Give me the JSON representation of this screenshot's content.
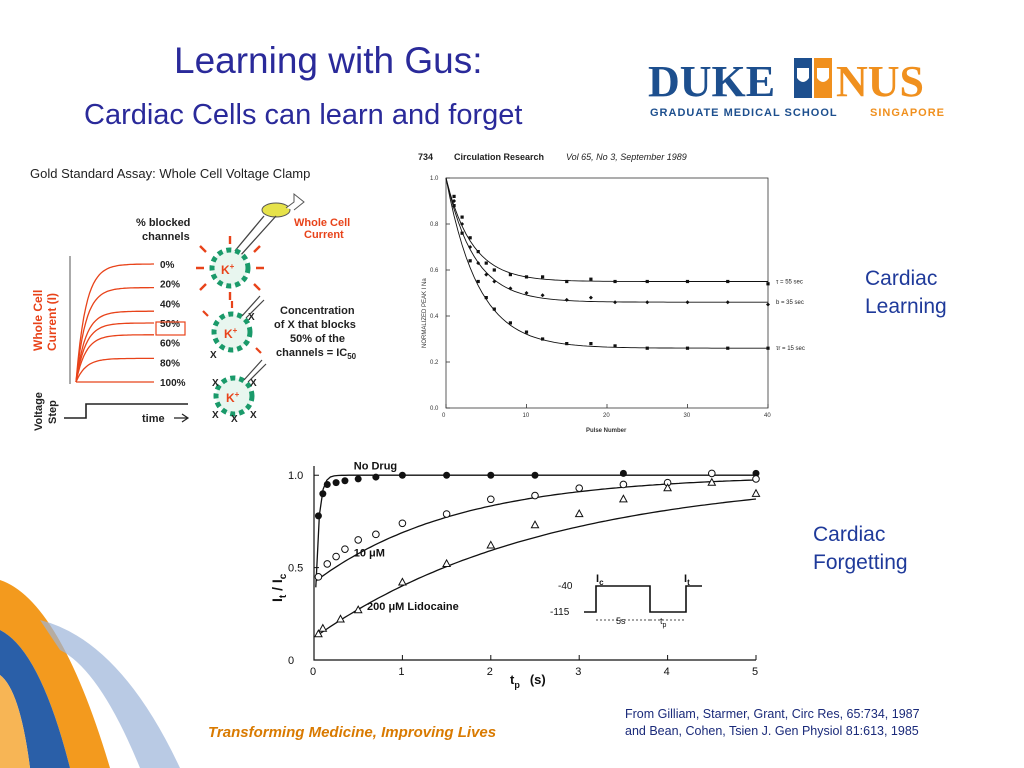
{
  "slide": {
    "title": "Learning with Gus:",
    "subtitle": "Cardiac Cells can learn and forget",
    "footer_tagline": "Transforming Medicine, Improving Lives",
    "citation_line1": "From Gilliam, Starmer, Grant, Circ Res, 65:734, 1987",
    "citation_line2": "and Bean, Cohen, Tsien  J. Gen Physiol 81:613, 1985",
    "label_learning_1": "Cardiac",
    "label_learning_2": "Learning",
    "label_forgetting_1": "Cardiac",
    "label_forgetting_2": "Forgetting"
  },
  "logo": {
    "word1": "DUKE",
    "word2": "NUS",
    "sub1": "GRADUATE MEDICAL SCHOOL",
    "sub2": "SINGAPORE",
    "colors": {
      "blue": "#1d4f8e",
      "orange": "#f0901e"
    }
  },
  "assay": {
    "title": "Gold Standard Assay:  Whole Cell Voltage Clamp",
    "blocked_header_1": "% blocked",
    "blocked_header_2": "channels",
    "percent_labels": [
      "0%",
      "20%",
      "40%",
      "50%",
      "60%",
      "80%",
      "100%"
    ],
    "ylabel_1": "Whole Cell",
    "ylabel_2": "Current (I)",
    "voltage_label_1": "Voltage",
    "voltage_label_2": "Step",
    "time_label": "time",
    "whole_cell_label_1": "Whole Cell",
    "whole_cell_label_2": "Current",
    "ic50_text_1": "Concentration",
    "ic50_text_2": "of X that blocks",
    "ic50_text_3": "50% of the",
    "ic50_text_4": "channels = IC",
    "ic50_sub": "50",
    "ion_label": "K",
    "ion_charge": "+",
    "blocker_label": "X",
    "curve_color": "#e8431a"
  },
  "chart_data": [
    {
      "type": "scatter",
      "header_page": "734",
      "header_journal": "Circulation Research",
      "header_issue": "Vol 65, No 3, September 1989",
      "xlabel": "Pulse Number",
      "ylabel": "NORMALIZED PEAK I Na",
      "xlim": [
        0,
        40
      ],
      "ylim": [
        0,
        1.0
      ],
      "x_ticks": [
        "0",
        "10",
        "20",
        "30",
        "40"
      ],
      "y_ticks": [
        "0.0",
        "0.2",
        "0.4",
        "0.6",
        "0.8",
        "1.0"
      ],
      "series": [
        {
          "name": "τ = 55 sec",
          "plateau": 0.55,
          "tau": 3.2,
          "x": [
            1,
            2,
            3,
            4,
            5,
            6,
            8,
            10,
            12,
            15,
            18,
            21,
            25,
            30,
            35,
            40
          ],
          "y": [
            0.92,
            0.83,
            0.74,
            0.68,
            0.63,
            0.6,
            0.58,
            0.57,
            0.57,
            0.55,
            0.56,
            0.55,
            0.55,
            0.55,
            0.55,
            0.54
          ]
        },
        {
          "name": "b = 35 sec",
          "plateau": 0.46,
          "tau": 3.5,
          "x": [
            1,
            2,
            3,
            4,
            5,
            6,
            8,
            10,
            12,
            15,
            18,
            21,
            25,
            30,
            35,
            40
          ],
          "y": [
            0.9,
            0.8,
            0.7,
            0.63,
            0.58,
            0.55,
            0.52,
            0.5,
            0.49,
            0.47,
            0.48,
            0.46,
            0.46,
            0.46,
            0.46,
            0.45
          ]
        },
        {
          "name": "τr = 15 sec",
          "plateau": 0.26,
          "tau": 4.0,
          "x": [
            1,
            2,
            3,
            4,
            5,
            6,
            8,
            10,
            12,
            15,
            18,
            21,
            25,
            30,
            35,
            40
          ],
          "y": [
            0.88,
            0.76,
            0.64,
            0.55,
            0.48,
            0.43,
            0.37,
            0.33,
            0.3,
            0.28,
            0.28,
            0.27,
            0.26,
            0.26,
            0.26,
            0.26
          ]
        }
      ]
    },
    {
      "type": "scatter",
      "xlabel": "t",
      "xlabel_sub": "p",
      "xlabel_unit": "(s)",
      "ylabel": "I",
      "ylabel_sub1": "t",
      "ylabel_slash": " / I",
      "ylabel_sub2": "c",
      "xlim": [
        0,
        5
      ],
      "ylim": [
        0,
        1.05
      ],
      "x_ticks": [
        "0",
        "1",
        "2",
        "3",
        "4",
        "5"
      ],
      "y_ticks": [
        "0",
        "0.5",
        "1.0"
      ],
      "series": [
        {
          "name": "No Drug",
          "marker": "filled-circle",
          "x": [
            0.05,
            0.1,
            0.15,
            0.25,
            0.35,
            0.5,
            0.7,
            1.0,
            1.5,
            2.0,
            2.5,
            3.5,
            4.5,
            5.0
          ],
          "y": [
            0.78,
            0.9,
            0.95,
            0.96,
            0.97,
            0.98,
            0.99,
            1.0,
            1.0,
            1.0,
            1.0,
            1.01,
            1.01,
            1.01
          ]
        },
        {
          "name": "10 μM",
          "marker": "open-circle",
          "x": [
            0.05,
            0.15,
            0.25,
            0.35,
            0.5,
            0.7,
            1.0,
            1.5,
            2.0,
            2.5,
            3.0,
            3.5,
            4.0,
            4.5,
            5.0
          ],
          "y": [
            0.45,
            0.52,
            0.56,
            0.6,
            0.65,
            0.68,
            0.74,
            0.79,
            0.87,
            0.89,
            0.93,
            0.95,
            0.96,
            1.01,
            0.98
          ]
        },
        {
          "name": "200 μM Lidocaine",
          "marker": "open-triangle",
          "x": [
            0.05,
            0.1,
            0.3,
            0.5,
            1.0,
            1.5,
            2.0,
            2.5,
            3.0,
            3.5,
            4.0,
            4.5,
            5.0
          ],
          "y": [
            0.14,
            0.17,
            0.22,
            0.27,
            0.42,
            0.52,
            0.62,
            0.73,
            0.79,
            0.87,
            0.93,
            0.96,
            0.9
          ]
        }
      ],
      "inset": {
        "v_top": "-40",
        "v_bottom": "-115",
        "label_ic": "I",
        "label_ic_sub": "c",
        "label_it": "I",
        "label_it_sub": "t",
        "duration": "5s",
        "tp": "t",
        "tp_sub": "p"
      }
    }
  ]
}
